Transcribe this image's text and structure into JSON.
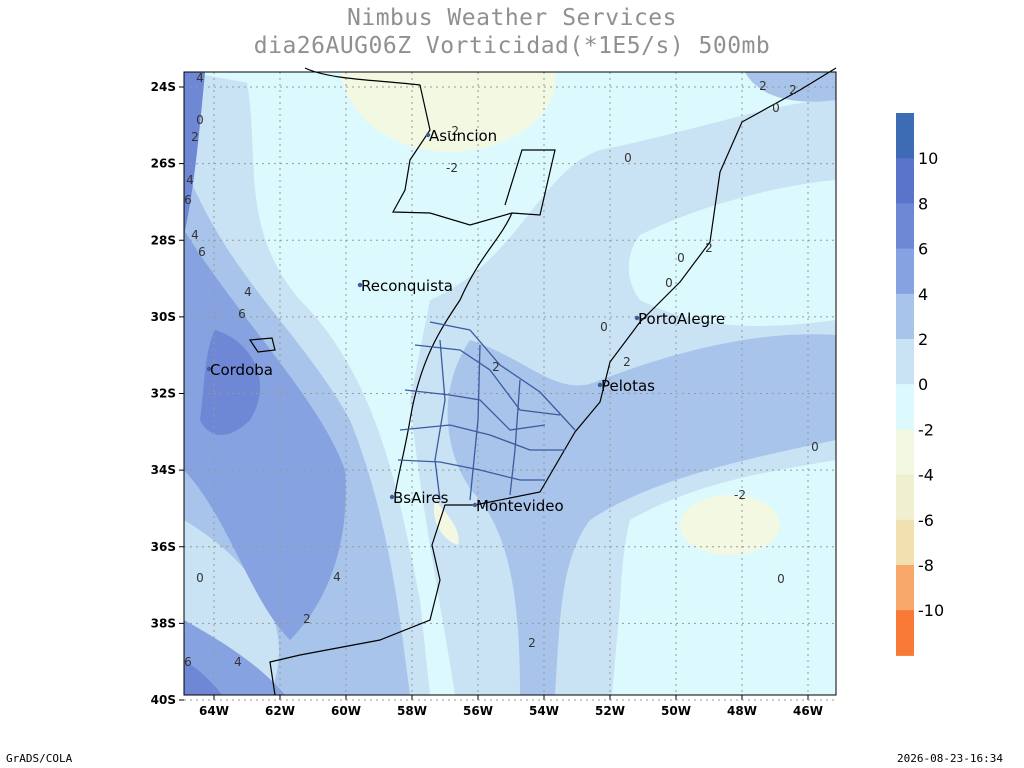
{
  "header": {
    "title_lines": [
      "Nimbus Weather Services",
      "dia26AUG06Z Vorticidad(*1E5/s) 500mb"
    ]
  },
  "map": {
    "lat_labels": [
      "24S",
      "26S",
      "28S",
      "30S",
      "32S",
      "34S",
      "36S",
      "38S",
      "40S"
    ],
    "lon_labels": [
      "64W",
      "62W",
      "60W",
      "58W",
      "56W",
      "54W",
      "52W",
      "50W",
      "48W",
      "46W"
    ],
    "cities": [
      "Asuncion",
      "Reconquista",
      "PortoAlegre",
      "Cordoba",
      "Pelotas",
      "BsAires",
      "Montevideo"
    ],
    "contour_labels": [
      "4",
      "0",
      "2",
      "4",
      "6",
      "4",
      "6",
      "4",
      "6",
      "0",
      "4",
      "2",
      "6",
      "4",
      "-2",
      "-2",
      "0",
      "2",
      "2",
      "2",
      "0",
      "0",
      "0",
      "2",
      "2",
      "0",
      "-2",
      "0",
      "2",
      "0"
    ]
  },
  "colorbar": {
    "colors": [
      "#3d6cb5",
      "#5a74cc",
      "#6f88d6",
      "#86a2e0",
      "#a8c4ea",
      "#c9e3f5",
      "#dcfafd",
      "#f3f8e3",
      "#f0efcf",
      "#f2e1b0",
      "#f8a86a",
      "#f87a36"
    ],
    "labels": [
      "10",
      "8",
      "6",
      "4",
      "2",
      "0",
      "-2",
      "-4",
      "-6",
      "-8",
      "-10"
    ]
  },
  "footer": {
    "left": "GrADS/COLA",
    "right": "2026-08-23-16:34"
  }
}
